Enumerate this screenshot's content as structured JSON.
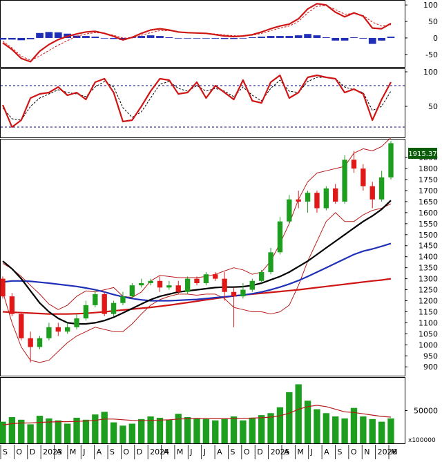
{
  "price_badge": "1915.37",
  "volume_multiplier": "x100000",
  "colors": {
    "up": "#1e9e1e",
    "down": "#e01818",
    "macd_line": "#d01515",
    "signal_line": "#d01515",
    "histogram": "#1f2fb8",
    "sma_short": "#000000",
    "sma_mid": "#1f2fb8",
    "sma_long": "#d01515",
    "bollinger": "#b81a1a",
    "volume_bar": "#1e9e1e",
    "volume_ma": "#b81a1a",
    "badge_bg": "#0b5d0b",
    "guide": "#000080"
  },
  "chart_data": [
    {
      "panel": "MACD",
      "type": "line",
      "y_ticks": [
        100,
        50,
        0,
        -50
      ],
      "ylim": [
        -88,
        115
      ],
      "macd": [
        -15,
        -35,
        -62,
        -72,
        -40,
        -20,
        -5,
        5,
        12,
        18,
        20,
        14,
        5,
        -6,
        2,
        14,
        24,
        28,
        24,
        18,
        16,
        15,
        14,
        10,
        6,
        4,
        6,
        10,
        18,
        28,
        36,
        42,
        58,
        88,
        104,
        100,
        78,
        64,
        76,
        66,
        30,
        28,
        44
      ],
      "signal": [
        -10,
        -30,
        -55,
        -68,
        -55,
        -38,
        -22,
        -8,
        5,
        12,
        16,
        14,
        8,
        0,
        0,
        8,
        16,
        22,
        22,
        18,
        16,
        15,
        14,
        12,
        9,
        7,
        6,
        8,
        14,
        22,
        30,
        36,
        50,
        76,
        96,
        98,
        86,
        72,
        74,
        68,
        48,
        36,
        40
      ],
      "histogram": [
        -5,
        -5,
        -7,
        -4,
        15,
        18,
        17,
        13,
        7,
        6,
        4,
        0,
        -3,
        -6,
        2,
        6,
        8,
        6,
        2,
        0,
        0,
        0,
        0,
        -2,
        -3,
        -3,
        0,
        2,
        4,
        6,
        6,
        6,
        8,
        12,
        8,
        2,
        -8,
        -8,
        2,
        -2,
        -18,
        -8,
        4
      ]
    },
    {
      "panel": "Stochastic",
      "type": "line",
      "y_ticks": [
        100,
        50
      ],
      "guides": [
        80,
        20
      ],
      "ylim": [
        5,
        105
      ],
      "k": [
        52,
        20,
        30,
        62,
        68,
        70,
        78,
        66,
        70,
        60,
        85,
        90,
        70,
        28,
        30,
        50,
        72,
        90,
        88,
        68,
        70,
        85,
        62,
        80,
        70,
        60,
        88,
        58,
        55,
        85,
        95,
        62,
        70,
        92,
        95,
        92,
        90,
        70,
        75,
        68,
        30,
        60,
        85
      ],
      "d": [
        48,
        32,
        30,
        50,
        62,
        68,
        74,
        70,
        68,
        64,
        78,
        86,
        78,
        48,
        34,
        42,
        62,
        82,
        86,
        76,
        72,
        80,
        72,
        76,
        72,
        64,
        78,
        66,
        58,
        76,
        88,
        72,
        70,
        86,
        92,
        92,
        90,
        78,
        74,
        70,
        44,
        50,
        72
      ]
    },
    {
      "panel": "Price",
      "type": "candlestick",
      "y_ticks": [
        1850,
        1800,
        1750,
        1700,
        1650,
        1600,
        1550,
        1500,
        1450,
        1400,
        1350,
        1300,
        1250,
        1200,
        1150,
        1100,
        1050,
        1000,
        950,
        900
      ],
      "ylim": [
        860,
        1935
      ],
      "last": 1915.37,
      "open": [
        1300,
        1220,
        1140,
        1030,
        990,
        1030,
        1080,
        1060,
        1080,
        1120,
        1180,
        1230,
        1140,
        1190,
        1220,
        1270,
        1280,
        1290,
        1260,
        1270,
        1240,
        1300,
        1280,
        1320,
        1300,
        1240,
        1220,
        1250,
        1290,
        1330,
        1420,
        1560,
        1660,
        1650,
        1690,
        1620,
        1710,
        1650,
        1840,
        1800,
        1720,
        1660,
        1760
      ],
      "close": [
        1220,
        1140,
        1030,
        990,
        1030,
        1080,
        1060,
        1080,
        1120,
        1180,
        1230,
        1140,
        1190,
        1220,
        1270,
        1280,
        1290,
        1260,
        1270,
        1240,
        1300,
        1280,
        1320,
        1300,
        1240,
        1220,
        1250,
        1290,
        1330,
        1420,
        1560,
        1660,
        1650,
        1690,
        1620,
        1710,
        1650,
        1840,
        1800,
        1720,
        1660,
        1760,
        1915
      ],
      "high": [
        1310,
        1235,
        1150,
        1060,
        1040,
        1100,
        1100,
        1100,
        1140,
        1200,
        1250,
        1240,
        1200,
        1240,
        1280,
        1300,
        1300,
        1310,
        1290,
        1290,
        1310,
        1310,
        1330,
        1330,
        1330,
        1260,
        1280,
        1300,
        1340,
        1440,
        1580,
        1680,
        1700,
        1700,
        1700,
        1720,
        1730,
        1860,
        1880,
        1820,
        1740,
        1790,
        1925
      ],
      "low": [
        1210,
        1130,
        1020,
        920,
        980,
        1020,
        1040,
        1050,
        1070,
        1110,
        1170,
        1130,
        1130,
        1180,
        1210,
        1260,
        1270,
        1240,
        1250,
        1230,
        1230,
        1270,
        1270,
        1290,
        1200,
        1080,
        1210,
        1240,
        1280,
        1320,
        1410,
        1550,
        1620,
        1600,
        1600,
        1610,
        1640,
        1640,
        1780,
        1700,
        1620,
        1650,
        1750
      ],
      "sma_short": [
        1380,
        1345,
        1300,
        1245,
        1190,
        1150,
        1120,
        1100,
        1095,
        1095,
        1100,
        1110,
        1125,
        1145,
        1165,
        1185,
        1205,
        1220,
        1230,
        1240,
        1245,
        1250,
        1255,
        1260,
        1262,
        1262,
        1264,
        1270,
        1280,
        1295,
        1310,
        1330,
        1355,
        1380,
        1410,
        1440,
        1470,
        1500,
        1530,
        1560,
        1585,
        1615,
        1655
      ],
      "sma_mid": [
        1285,
        1290,
        1290,
        1288,
        1284,
        1280,
        1275,
        1270,
        1265,
        1258,
        1250,
        1240,
        1228,
        1218,
        1210,
        1204,
        1200,
        1200,
        1200,
        1202,
        1204,
        1206,
        1210,
        1214,
        1218,
        1222,
        1226,
        1232,
        1240,
        1250,
        1262,
        1276,
        1292,
        1310,
        1330,
        1350,
        1370,
        1390,
        1410,
        1425,
        1435,
        1447,
        1460
      ],
      "sma_long": [
        1150,
        1148,
        1146,
        1144,
        1142,
        1140,
        1140,
        1140,
        1141,
        1143,
        1146,
        1150,
        1154,
        1158,
        1162,
        1166,
        1170,
        1175,
        1180,
        1186,
        1192,
        1198,
        1204,
        1210,
        1216,
        1222,
        1226,
        1230,
        1234,
        1238,
        1242,
        1246,
        1250,
        1255,
        1260,
        1265,
        1270,
        1275,
        1280,
        1285,
        1290,
        1294,
        1300
      ],
      "bb_upper": [
        1370,
        1345,
        1310,
        1270,
        1230,
        1185,
        1160,
        1180,
        1220,
        1245,
        1240,
        1250,
        1260,
        1220,
        1215,
        1240,
        1290,
        1315,
        1310,
        1305,
        1305,
        1305,
        1310,
        1320,
        1335,
        1350,
        1340,
        1320,
        1330,
        1380,
        1460,
        1550,
        1660,
        1740,
        1780,
        1790,
        1800,
        1810,
        1870,
        1890,
        1880,
        1900,
        1940
      ],
      "bb_lower": [
        1240,
        1100,
        990,
        930,
        920,
        930,
        970,
        1010,
        1040,
        1060,
        1080,
        1070,
        1060,
        1060,
        1095,
        1140,
        1180,
        1205,
        1220,
        1230,
        1230,
        1225,
        1230,
        1230,
        1210,
        1170,
        1160,
        1150,
        1150,
        1140,
        1150,
        1180,
        1270,
        1380,
        1470,
        1560,
        1600,
        1560,
        1560,
        1590,
        1610,
        1620,
        1640
      ]
    },
    {
      "panel": "Volume",
      "type": "bar",
      "y_ticks": [
        50000
      ],
      "ylim": [
        0,
        101000
      ],
      "values": [
        33000,
        40000,
        36000,
        29000,
        42000,
        38000,
        35000,
        30000,
        39000,
        36000,
        44000,
        48000,
        32000,
        27000,
        30000,
        37000,
        41000,
        39000,
        36000,
        45000,
        40000,
        38000,
        37000,
        35000,
        38000,
        41000,
        35000,
        39000,
        43000,
        46000,
        55000,
        78000,
        90000,
        65000,
        52000,
        46000,
        41000,
        38000,
        54000,
        41000,
        37000,
        33000,
        38000
      ],
      "ma": [
        28000,
        30000,
        31000,
        31000,
        32000,
        32500,
        33000,
        33000,
        33500,
        34000,
        35000,
        37000,
        37000,
        36000,
        35000,
        34500,
        35000,
        35500,
        36000,
        37000,
        37500,
        38000,
        38000,
        37500,
        37500,
        38000,
        38000,
        38500,
        39000,
        40000,
        42000,
        46000,
        52000,
        56000,
        58000,
        56000,
        52000,
        48000,
        47000,
        45000,
        43000,
        41000,
        40000
      ]
    },
    {
      "panel": "TimeAxis",
      "type": "table",
      "x_labels": [
        "S",
        "O",
        "D",
        "2023",
        "A",
        "M",
        "J",
        "A",
        "S",
        "O",
        "D",
        "2024",
        "A",
        "M",
        "J",
        "J",
        "A",
        "S",
        "O",
        "D",
        "2025",
        "A",
        "M",
        "J",
        "A",
        "S",
        "O",
        "N",
        "2026",
        "M"
      ]
    }
  ]
}
